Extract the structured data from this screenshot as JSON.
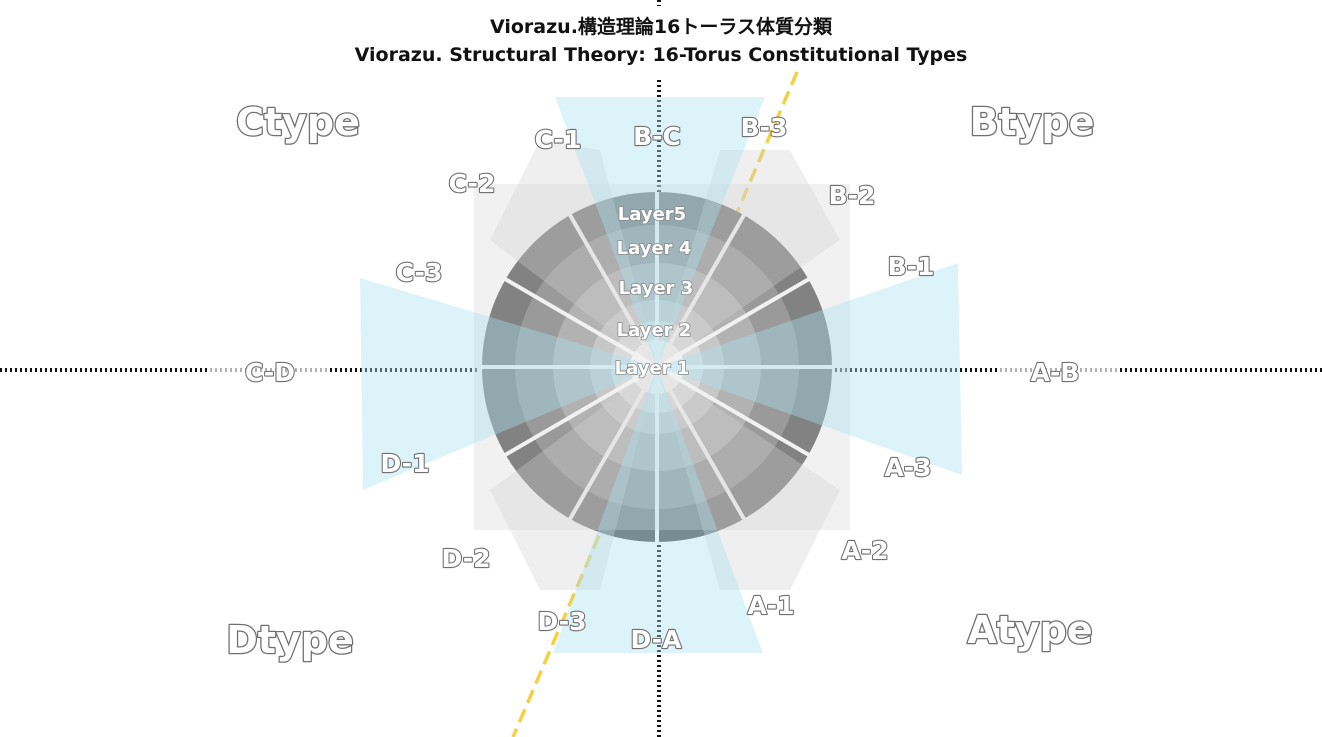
{
  "title": {
    "ja": "Viorazu.構造理論16トーラス体質分類",
    "en": "Viorazu. Structural Theory: 16-Torus Constitutional Types"
  },
  "types": {
    "a": "Atype",
    "b": "Btype",
    "c": "Ctype",
    "d": "Dtype"
  },
  "segments": {
    "a_b": "A-B",
    "a1": "A-1",
    "a2": "A-2",
    "a3": "A-3",
    "b1": "B-1",
    "b2": "B-2",
    "b3": "B-3",
    "b_c": "B-C",
    "c1": "C-1",
    "c2": "C-2",
    "c3": "C-3",
    "c_d": "C-D",
    "d1": "D-1",
    "d2": "D-2",
    "d3": "D-3",
    "d_a": "D-A"
  },
  "layers": {
    "l1": "Layer 1",
    "l2": "Layer 2",
    "l3": "Layer 3",
    "l4": "Layer 4",
    "l5": "Layer5"
  },
  "colors": {
    "layer5": "#555555",
    "layer4": "#7a7a7a",
    "layer3": "#9e9e9e",
    "layer2": "#bfbfbf",
    "layer1": "#dcdcdc",
    "axis_overlay": "#a8e4f0",
    "gray_overlay": "#d6d6d6",
    "yellow_axis": "#f5d040",
    "dotted_axis": "#111111"
  }
}
